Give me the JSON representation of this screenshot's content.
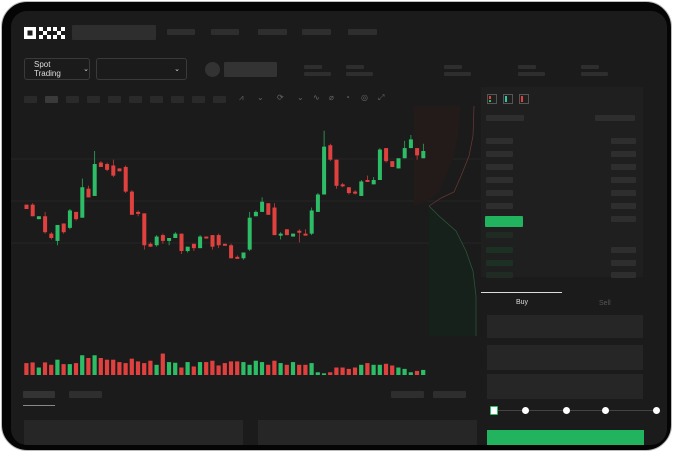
{
  "brand": {
    "logo_text": "OKX"
  },
  "toolbar": {
    "market_selector": "Spot Trading",
    "pair_selector": ""
  },
  "icons": [
    "chevron-down-icon",
    "line-icon",
    "pen-icon",
    "magnet-icon",
    "target-icon",
    "fullscreen-icon",
    "orderbook-both-icon",
    "orderbook-bids-icon",
    "orderbook-asks-icon"
  ],
  "colors": {
    "up": "#2ebd67",
    "down": "#e0413f",
    "buy_button": "#22b35e",
    "background": "#1b1b1b"
  },
  "order_form": {
    "tabs": [
      {
        "label": "Buy",
        "active": true
      },
      {
        "label": "Sell",
        "active": false
      }
    ],
    "leverage_steps": 5,
    "slider_value": 0
  },
  "chart_data": {
    "type": "candlestick",
    "candles": [
      [
        43,
        40,
        43,
        40
      ],
      [
        43,
        35,
        44,
        35
      ],
      [
        33,
        35,
        35,
        33
      ],
      [
        35,
        24,
        38,
        23
      ],
      [
        23,
        20,
        24,
        19
      ],
      [
        18,
        29,
        29,
        15
      ],
      [
        30,
        24,
        30,
        23
      ],
      [
        27,
        39,
        40,
        26
      ],
      [
        38,
        33,
        38,
        32
      ],
      [
        34,
        55,
        61,
        34
      ],
      [
        54,
        48,
        56,
        48
      ],
      [
        49,
        71,
        80,
        49
      ],
      [
        72,
        69,
        73,
        69
      ],
      [
        71,
        67,
        72,
        66
      ],
      [
        70,
        63,
        74,
        62
      ],
      [
        68,
        66,
        68,
        66
      ],
      [
        69,
        52,
        70,
        51
      ],
      [
        52,
        36,
        53,
        36
      ],
      [
        38,
        37,
        39,
        35
      ],
      [
        37,
        15,
        37,
        12
      ],
      [
        16,
        14,
        17,
        14
      ],
      [
        15,
        21,
        22,
        14
      ],
      [
        22,
        18,
        23,
        16
      ],
      [
        18,
        20,
        20,
        15
      ],
      [
        20,
        23,
        24,
        20
      ],
      [
        23,
        11,
        23,
        9
      ],
      [
        11,
        14,
        14,
        10
      ],
      [
        16,
        13,
        16,
        11
      ],
      [
        13,
        21,
        22,
        13
      ],
      [
        21,
        20,
        21,
        20
      ],
      [
        22,
        14,
        22,
        12
      ],
      [
        22,
        15,
        23,
        13
      ],
      [
        16,
        15,
        16,
        15
      ],
      [
        15,
        6,
        16,
        6
      ],
      [
        7,
        6,
        8,
        6
      ],
      [
        6,
        10,
        10,
        5
      ],
      [
        12,
        34,
        38,
        11
      ],
      [
        35,
        38,
        39,
        35
      ],
      [
        38,
        45,
        48,
        38
      ],
      [
        44,
        36,
        44,
        36
      ],
      [
        41,
        22,
        44,
        22
      ],
      [
        22,
        23,
        24,
        19
      ],
      [
        26,
        22,
        26,
        22
      ],
      [
        21,
        23,
        23,
        21
      ],
      [
        25,
        24,
        26,
        17
      ],
      [
        23,
        22,
        26,
        22
      ],
      [
        23,
        39,
        41,
        22
      ],
      [
        38,
        50,
        51,
        38
      ],
      [
        50,
        83,
        94,
        50
      ],
      [
        84,
        74,
        85,
        73
      ],
      [
        74,
        56,
        74,
        54
      ],
      [
        57,
        56,
        58,
        55
      ],
      [
        55,
        51,
        55,
        50
      ],
      [
        52,
        51,
        53,
        50
      ],
      [
        49,
        59,
        60,
        49
      ],
      [
        60,
        59,
        63,
        59
      ],
      [
        57,
        60,
        62,
        57
      ],
      [
        60,
        81,
        82,
        60
      ],
      [
        82,
        73,
        82,
        72
      ],
      [
        73,
        69,
        73,
        69
      ],
      [
        68,
        75,
        75,
        68
      ],
      [
        75,
        82,
        87,
        75
      ],
      [
        82,
        88,
        91,
        82
      ],
      [
        82,
        77,
        82,
        74
      ],
      [
        75,
        80,
        85,
        75
      ]
    ],
    "candle_format": "open,close,high,low",
    "volumes": [
      35,
      37,
      22,
      37,
      30,
      45,
      32,
      32,
      35,
      58,
      50,
      58,
      50,
      45,
      45,
      38,
      35,
      48,
      40,
      35,
      42,
      30,
      63,
      38,
      36,
      22,
      38,
      25,
      38,
      38,
      42,
      28,
      35,
      40,
      40,
      38,
      30,
      42,
      38,
      30,
      42,
      35,
      30,
      38,
      30,
      30,
      35,
      8,
      5,
      8,
      22,
      22,
      18,
      22,
      30,
      35,
      30,
      30,
      33,
      28,
      22,
      18,
      8,
      12,
      15
    ],
    "grid": true
  }
}
